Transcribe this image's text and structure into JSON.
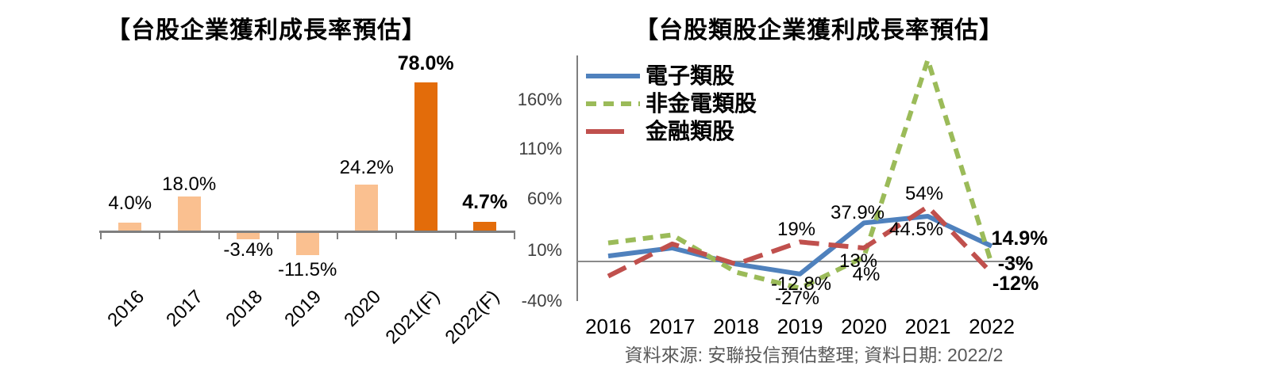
{
  "charts": [
    {
      "type": "bar",
      "title": "【台股企業獲利成長率預估】",
      "categories": [
        "2016",
        "2017",
        "2018",
        "2019",
        "2020",
        "2021(F)",
        "2022(F)"
      ],
      "values": [
        4.0,
        18.0,
        -3.4,
        -11.5,
        24.2,
        78.0,
        4.7
      ],
      "labels": [
        "4.0%",
        "18.0%",
        "-3.4%",
        "-11.5%",
        "24.2%",
        "78.0%",
        "4.7%"
      ],
      "labels_bold": [
        false,
        false,
        false,
        false,
        false,
        true,
        true
      ],
      "bar_colors": [
        "#FAC090",
        "#FAC090",
        "#FAC090",
        "#FAC090",
        "#FAC090",
        "#E36C0A",
        "#E36C0A"
      ],
      "axis_color": "#7f7f7f"
    },
    {
      "type": "line",
      "title": "【台股類股企業獲利成長率預估】",
      "categories": [
        "2016",
        "2017",
        "2018",
        "2019",
        "2020",
        "2021",
        "2022"
      ],
      "y_ticks": [
        "160%",
        "110%",
        "60%",
        "10%",
        "-40%"
      ],
      "y_tick_values": [
        160,
        110,
        60,
        10,
        -40
      ],
      "ylim": [
        -40,
        210
      ],
      "grid": "zero-line-only",
      "legend_position": "top-left-inside",
      "series": [
        {
          "name": "電子類股",
          "color": "#4F81BD",
          "style": "solid",
          "values": [
            5,
            13,
            -3,
            -12.8,
            37.9,
            44.5,
            14.9
          ],
          "labels": [
            null,
            null,
            null,
            "-12.8%",
            "37.9%",
            "44.5%",
            "14.9%"
          ],
          "labels_bold": [
            false,
            false,
            false,
            false,
            false,
            false,
            true
          ]
        },
        {
          "name": "非金電類股",
          "color": "#9BBB59",
          "style": "dashed",
          "values": [
            18,
            26,
            -11,
            -27,
            4,
            200,
            -3
          ],
          "labels": [
            null,
            null,
            null,
            "-27%",
            "4%",
            null,
            "-3%"
          ],
          "labels_bold": [
            false,
            false,
            false,
            false,
            false,
            false,
            true
          ]
        },
        {
          "name": "金融類股",
          "color": "#C0504D",
          "style": "long-dash",
          "values": [
            -15,
            17,
            -3,
            19,
            13,
            54,
            -12
          ],
          "labels": [
            null,
            null,
            null,
            "19%",
            "13%",
            "54%",
            "-12%"
          ],
          "labels_bold": [
            false,
            false,
            false,
            false,
            false,
            false,
            true
          ]
        }
      ]
    }
  ],
  "footer": {
    "source_note": "資料來源: 安聯投信預估整理; 資料日期: 2022/2"
  }
}
